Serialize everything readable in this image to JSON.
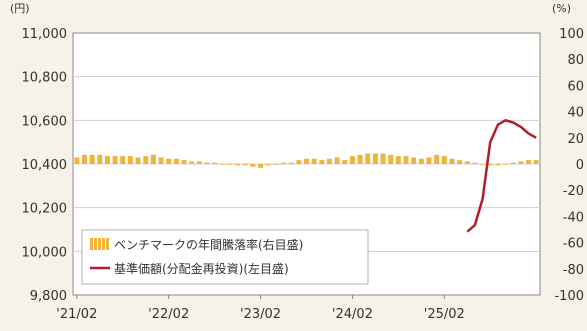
{
  "chart_data": {
    "type": "bar+line",
    "left_unit": "(円)",
    "right_unit": "(%)",
    "left_axis": {
      "ylim": [
        9800,
        11000
      ],
      "ticks": [
        "11,000",
        "10,800",
        "10,600",
        "10,400",
        "10,200",
        "10,000",
        "9,800"
      ],
      "tick_values": [
        11000,
        10800,
        10600,
        10400,
        10200,
        10000,
        9800
      ]
    },
    "right_axis": {
      "ylim": [
        -100,
        100
      ],
      "ticks": [
        "100",
        "80",
        "60",
        "40",
        "20",
        "0",
        "-20",
        "-40",
        "-60",
        "-80",
        "-100"
      ],
      "tick_values": [
        100,
        80,
        60,
        40,
        20,
        0,
        -20,
        -40,
        -60,
        -80,
        -100
      ]
    },
    "x_ticks": [
      "'21/02",
      "'22/02",
      "'23/02",
      "'24/02",
      "'25/02"
    ],
    "grid": true,
    "legend_position": "bottom-left",
    "series": [
      {
        "name": "ベンチマークの年間騰落率(右目盛)",
        "kind": "bar",
        "axis": "right",
        "color": "#f0b43c",
        "months": [
          "2021-02",
          "2021-03",
          "2021-04",
          "2021-05",
          "2021-06",
          "2021-07",
          "2021-08",
          "2021-09",
          "2021-10",
          "2021-11",
          "2021-12",
          "2022-01",
          "2022-02",
          "2022-03",
          "2022-04",
          "2022-05",
          "2022-06",
          "2022-07",
          "2022-08",
          "2022-09",
          "2022-10",
          "2022-11",
          "2022-12",
          "2023-01",
          "2023-02",
          "2023-03",
          "2023-04",
          "2023-05",
          "2023-06",
          "2023-07",
          "2023-08",
          "2023-09",
          "2023-10",
          "2023-11",
          "2023-12",
          "2024-01",
          "2024-02",
          "2024-03",
          "2024-04",
          "2024-05",
          "2024-06",
          "2024-07",
          "2024-08",
          "2024-09",
          "2024-10",
          "2024-11",
          "2024-12",
          "2025-01",
          "2025-02",
          "2025-03",
          "2025-04",
          "2025-05",
          "2025-06",
          "2025-07",
          "2025-08",
          "2025-09",
          "2025-10",
          "2025-11",
          "2025-12",
          "2026-01",
          "2026-02"
        ],
        "values": [
          5,
          7,
          7,
          7,
          6,
          6,
          6,
          6,
          5,
          6,
          7,
          5,
          4,
          4,
          3,
          2,
          2,
          1,
          1,
          0,
          0,
          -1,
          -1,
          -2,
          -3,
          -1,
          0,
          1,
          1,
          3,
          4,
          4,
          3,
          4,
          5,
          3,
          6,
          7,
          8,
          8,
          8,
          7,
          6,
          6,
          5,
          4,
          5,
          7,
          6,
          4,
          3,
          2,
          1,
          0,
          -1,
          -1,
          0,
          1,
          2,
          3,
          3
        ]
      },
      {
        "name": "基準価額(分配金再投資)(左目盛)",
        "kind": "line",
        "axis": "left",
        "color": "#b01e2d",
        "months": [
          "2025-05",
          "2025-06",
          "2025-07",
          "2025-08",
          "2025-09",
          "2025-10",
          "2025-11",
          "2025-12",
          "2026-01",
          "2026-02"
        ],
        "values": [
          10090,
          10120,
          10240,
          10500,
          10580,
          10600,
          10590,
          10570,
          10540,
          10520
        ]
      }
    ]
  }
}
